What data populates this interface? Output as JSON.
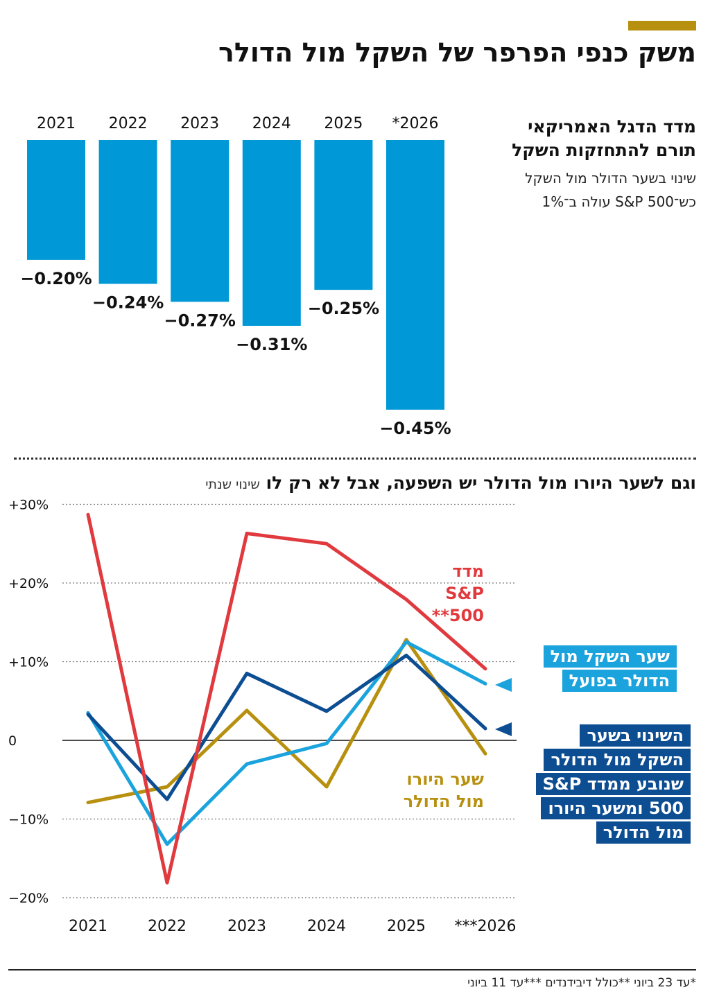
{
  "header": {
    "title": "משק כנפי הפרפר של השקל מול הדולר"
  },
  "bar_section": {
    "title_lines": [
      "מדד הדגל האמריקאי",
      "תורם להתחזקות השקל"
    ],
    "desc_lines": [
      "שינוי בשער הדולר מול השקל",
      "כש־S&P 500 עולה ב־1%"
    ]
  },
  "line_section": {
    "title": "וגם לשער היורו מול הדולר יש השפעה, אבל לא רק לו",
    "unit": "שינוי שנתי",
    "labels": {
      "sp500": [
        "מדד",
        "S&P",
        "500**"
      ],
      "euro": [
        "שער היורו",
        "מול הדולר"
      ],
      "shekel_actual": [
        "שער השקל מול",
        "הדולר בפועל"
      ],
      "shekel_implied": [
        "השינוי בשער",
        "השקל מול הדולר",
        "שנובע ממדד S&P",
        "500 ומשער היורו",
        "מול הדולר"
      ]
    }
  },
  "footnote": "*עד 23 ביוני **כולל דיבידנדים ***עד 11 ביוני",
  "colors": {
    "bar": "#0098d6",
    "sp500": "#e03a3e",
    "euro": "#b8900f",
    "shekel_actual": "#1aa3dc",
    "shekel_implied": "#0d4d92",
    "accent": "#b8900f"
  },
  "chart_data": [
    {
      "type": "bar",
      "categories": [
        "2021",
        "2022",
        "2023",
        "2024",
        "2025",
        "*2026"
      ],
      "values": [
        -0.2,
        -0.24,
        -0.27,
        -0.31,
        -0.25,
        -0.45
      ],
      "value_labels": [
        "−0.20%",
        "−0.24%",
        "−0.27%",
        "−0.31%",
        "−0.25%",
        "−0.45%"
      ],
      "ylim": [
        -0.45,
        0
      ]
    },
    {
      "type": "line",
      "x": [
        "2021",
        "2022",
        "2023",
        "2024",
        "2025",
        "***2026"
      ],
      "yticks": [
        30,
        20,
        10,
        0,
        -10,
        -20
      ],
      "ytick_labels": [
        "+30%",
        "+20%",
        "+10%",
        "0",
        "−10%",
        "−20%"
      ],
      "ylim": [
        -20,
        30
      ],
      "series": [
        {
          "key": "euro",
          "values": [
            -7.9,
            -5.9,
            3.8,
            -5.9,
            12.8,
            -1.7
          ]
        },
        {
          "key": "shekel_actual",
          "values": [
            3.5,
            -13.2,
            -3.0,
            -0.4,
            12.5,
            7.2
          ]
        },
        {
          "key": "shekel_implied",
          "values": [
            3.3,
            -7.5,
            8.5,
            3.7,
            10.8,
            1.5
          ]
        },
        {
          "key": "sp500",
          "values": [
            28.7,
            -18.1,
            26.3,
            25.0,
            17.9,
            9.1
          ]
        }
      ]
    }
  ]
}
